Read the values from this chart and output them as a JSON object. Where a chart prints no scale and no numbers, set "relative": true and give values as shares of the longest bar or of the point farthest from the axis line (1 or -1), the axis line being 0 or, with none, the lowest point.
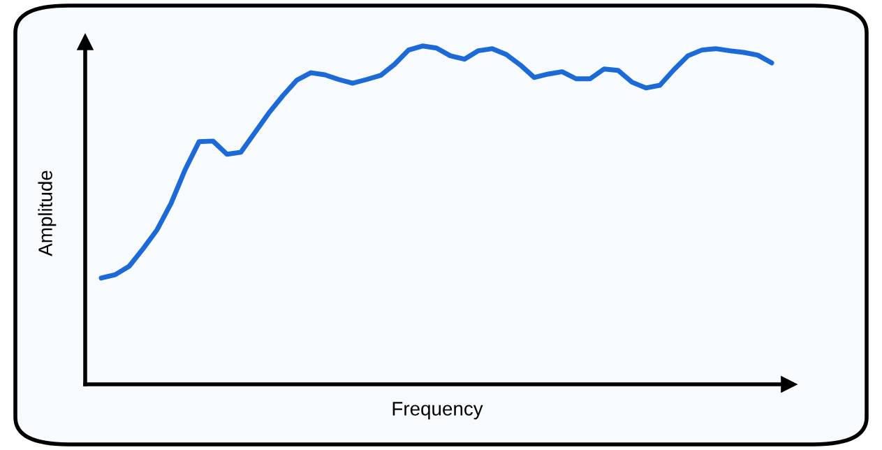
{
  "chart_data": {
    "type": "line",
    "relative": true,
    "xlabel": "Frequency",
    "ylabel": "Amplitude",
    "grid": false,
    "marker": "none",
    "line_style": "solid",
    "categories": [
      null,
      null,
      null,
      null,
      null,
      null,
      null,
      null,
      null,
      null,
      null,
      null,
      null,
      null,
      null,
      null,
      null,
      null,
      null,
      null,
      null,
      null,
      null,
      null,
      null,
      null,
      null,
      null,
      null,
      null,
      null,
      null,
      null,
      null,
      null,
      null,
      null,
      null,
      null,
      null,
      null,
      null,
      null,
      null,
      null,
      null,
      null,
      null,
      null
    ],
    "series": [
      {
        "color": "#1c6ad8",
        "values": [
          0.314,
          0.324,
          0.349,
          0.401,
          0.457,
          0.535,
          0.634,
          0.717,
          0.719,
          0.68,
          0.686,
          0.744,
          0.802,
          0.853,
          0.899,
          0.921,
          0.915,
          0.901,
          0.89,
          0.901,
          0.913,
          0.946,
          0.988,
          1.0,
          0.994,
          0.971,
          0.961,
          0.986,
          0.992,
          0.975,
          0.944,
          0.907,
          0.917,
          0.924,
          0.903,
          0.903,
          0.932,
          0.928,
          0.893,
          0.876,
          0.884,
          0.93,
          0.971,
          0.988,
          0.992,
          0.986,
          0.981,
          0.973,
          0.95
        ]
      }
    ]
  }
}
